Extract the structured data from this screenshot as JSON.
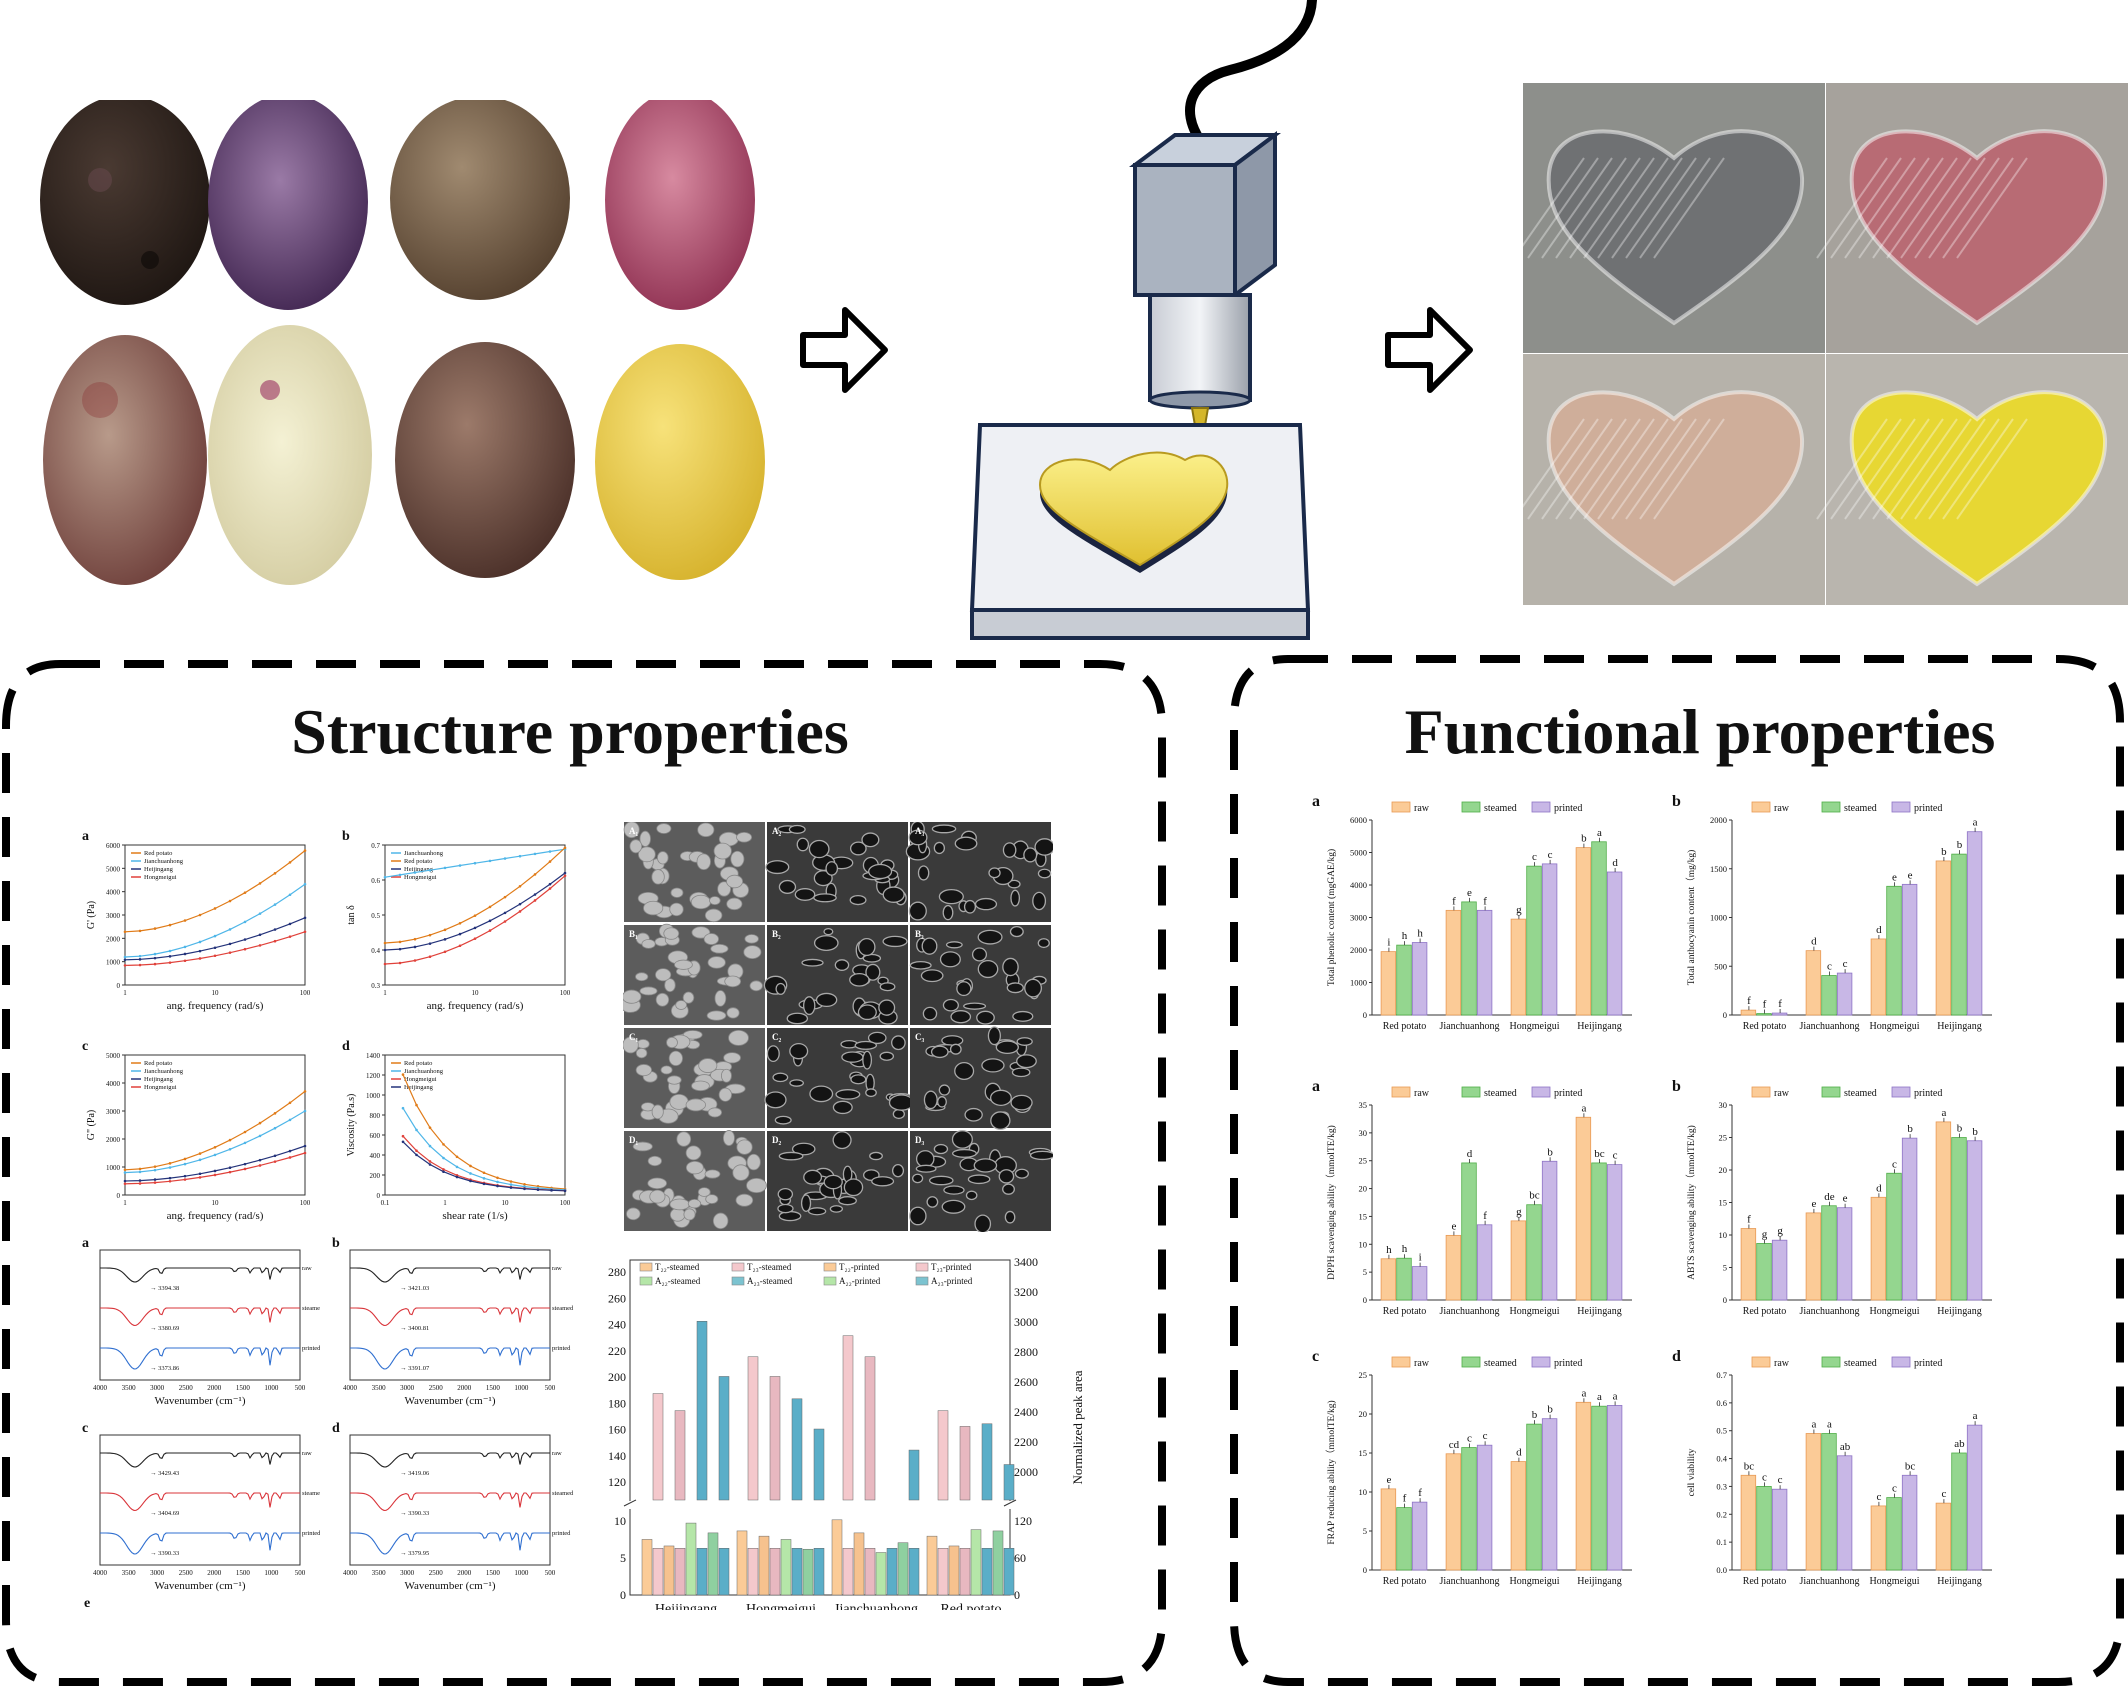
{
  "sections": {
    "structure_title": "Structure properties",
    "functional_title": "Functional properties"
  },
  "top_row": {
    "arrow_icon": "hollow-right-arrow-icon",
    "printer_icon": "3d-printer-nozzle-icon",
    "potato_photos": [
      "dark-purple-potato",
      "purple-flesh-potato",
      "brown-potato",
      "red-flesh-potato",
      "red-skin-potato",
      "white-purple-flesh-potato",
      "red-brown-potato",
      "yellow-flesh-potato"
    ],
    "printed_hearts": [
      {
        "color": "#6f7173"
      },
      {
        "color": "#b86b74"
      },
      {
        "color": "#cfae9a"
      },
      {
        "color": "#e7d733"
      }
    ]
  },
  "colors": {
    "raw": "#fbcb97",
    "steamed": "#94d68f",
    "printed": "#c8b7e6",
    "red_potato": "#e0413a",
    "jianchuanhong": "#4fb6e8",
    "heijingang": "#24337a",
    "hongmeigui": "#e07b18"
  },
  "structure": {
    "rheology": [
      {
        "letter": "a",
        "ylabel": "G' (Pa)",
        "xlabel": "ang. frequency (rad/s)",
        "legend": [
          "Red potato",
          "Jianchuanhong",
          "Heijingang",
          "Hongmeigui"
        ],
        "yticks": [
          "0",
          "1000",
          "2000",
          "3000",
          "4000",
          "5000",
          "6000"
        ],
        "xticks": [
          "1",
          "10",
          "100"
        ]
      },
      {
        "letter": "b",
        "ylabel": "tan δ",
        "xlabel": "ang. frequency (rad/s)",
        "legend": [
          "Jianchuanhong",
          "Red potato",
          "Heijingang",
          "Hongmeigui"
        ],
        "yticks": [
          "0.3",
          "0.4",
          "0.5",
          "0.6",
          "0.7"
        ],
        "xticks": [
          "1",
          "10",
          "100"
        ]
      },
      {
        "letter": "c",
        "ylabel": "G\" (Pa)",
        "xlabel": "ang. frequency (rad/s)",
        "legend": [
          "Red potato",
          "Jianchuanhong",
          "Heijingang",
          "Hongmeigui"
        ],
        "yticks": [
          "0",
          "1000",
          "2000",
          "3000",
          "4000",
          "5000"
        ],
        "xticks": [
          "1",
          "10",
          "100"
        ]
      },
      {
        "letter": "d",
        "ylabel": "Viscosity (Pa.s)",
        "xlabel": "shear rate (1/s)",
        "legend": [
          "Red potato",
          "Jianchuanhong",
          "Hongmeigui",
          "Heijingang"
        ],
        "yticks": [
          "0",
          "200",
          "400",
          "600",
          "800",
          "1000",
          "1200",
          "1400"
        ],
        "xticks": [
          "0.1",
          "1",
          "10",
          "100"
        ]
      }
    ],
    "ftir": [
      {
        "letter": "a",
        "peaks": [
          "3394.38",
          "3380.69",
          "3373.86"
        ]
      },
      {
        "letter": "b",
        "peaks": [
          "3421.03",
          "3400.81",
          "3391.07"
        ]
      },
      {
        "letter": "c",
        "peaks": [
          "3429.43",
          "3404.69",
          "3390.33"
        ]
      },
      {
        "letter": "d",
        "peaks": [
          "3419.06",
          "3390.33",
          "3379.95"
        ]
      }
    ],
    "ftir_labels": [
      "raw",
      "steamed",
      "printed"
    ],
    "ftir_xlabel": "Wavenumber (cm⁻¹)",
    "ftir_xticks": [
      "4000",
      "3500",
      "3000",
      "2500",
      "2000",
      "1500",
      "1000",
      "500"
    ],
    "ftir_extra_letter": "e",
    "sem_labels": [
      "A₁",
      "A₂",
      "A₃",
      "B₁",
      "B₂",
      "B₃",
      "C₁",
      "C₂",
      "C₃",
      "D₁",
      "D₂",
      "D₃"
    ],
    "nmr": {
      "legend": [
        "T₂₂-steamed",
        "T₂₃-steamed",
        "T₂₂-printed",
        "T₂₃-printed",
        "A₂₂-steamed",
        "A₂₃-steamed",
        "A₂₂-printed",
        "A₂₃-printed"
      ],
      "categories": [
        "Heijingang",
        "Hongmeigui",
        "Jianchuanhong",
        "Red potato"
      ],
      "left_ticks": [
        "0",
        "5",
        "10",
        "120",
        "140",
        "160",
        "180",
        "200",
        "220",
        "240",
        "260",
        "280"
      ],
      "right_ticks": [
        "0",
        "60",
        "120",
        "2000",
        "2200",
        "2400",
        "2600",
        "2800",
        "3000",
        "3200",
        "3400"
      ],
      "right_label": "Normalized peak area"
    }
  },
  "chart_data": [
    {
      "type": "bar",
      "title": "a",
      "ylabel": "Total phenolic content (mgGAE/kg)",
      "categories": [
        "Red potato",
        "Jianchuanhong",
        "Hongmeigui",
        "Heijingang"
      ],
      "ylim": [
        0,
        6000
      ],
      "yticks": [
        "0",
        "1000",
        "2000",
        "3000",
        "4000",
        "5000",
        "6000"
      ],
      "series": [
        {
          "name": "raw",
          "values": [
            1950,
            3220,
            2950,
            5150
          ],
          "letters": [
            "i",
            "f",
            "g",
            "b"
          ]
        },
        {
          "name": "steamed",
          "values": [
            2150,
            3480,
            4580,
            5330
          ],
          "letters": [
            "h",
            "e",
            "c",
            "a"
          ]
        },
        {
          "name": "printed",
          "values": [
            2230,
            3220,
            4650,
            4400
          ],
          "letters": [
            "h",
            "f",
            "c",
            "d"
          ]
        }
      ]
    },
    {
      "type": "bar",
      "title": "b",
      "ylabel": "Total anthocyanin content（mg/kg)",
      "categories": [
        "Red potato",
        "Jianchuanhong",
        "Hongmeigui",
        "Heijingang"
      ],
      "ylim": [
        0,
        2000
      ],
      "yticks": [
        "0",
        "500",
        "1000",
        "1500",
        "2000"
      ],
      "series": [
        {
          "name": "raw",
          "values": [
            50,
            660,
            780,
            1580
          ],
          "letters": [
            "f",
            "d",
            "d",
            "b"
          ]
        },
        {
          "name": "steamed",
          "values": [
            15,
            405,
            1320,
            1650
          ],
          "letters": [
            "f",
            "c",
            "e",
            "b"
          ]
        },
        {
          "name": "printed",
          "values": [
            20,
            430,
            1340,
            1880
          ],
          "letters": [
            "f",
            "c",
            "e",
            "a"
          ]
        }
      ]
    },
    {
      "type": "bar",
      "title": "a",
      "ylabel": "DPPH scavenging ability（mmolTE/kg)",
      "categories": [
        "Red potato",
        "Jianchuanhong",
        "Hongmeigui",
        "Heijingang"
      ],
      "ylim": [
        0,
        35
      ],
      "yticks": [
        "0",
        "5",
        "10",
        "15",
        "20",
        "25",
        "30",
        "35"
      ],
      "series": [
        {
          "name": "raw",
          "values": [
            7.4,
            11.6,
            14.2,
            32.8
          ],
          "letters": [
            "h",
            "e",
            "g",
            "a"
          ]
        },
        {
          "name": "steamed",
          "values": [
            7.5,
            24.6,
            17.1,
            24.6
          ],
          "letters": [
            "h",
            "d",
            "bc",
            "bc"
          ]
        },
        {
          "name": "printed",
          "values": [
            6.0,
            13.5,
            24.9,
            24.3
          ],
          "letters": [
            "i",
            "f",
            "b",
            "c"
          ]
        }
      ]
    },
    {
      "type": "bar",
      "title": "b",
      "ylabel": "ABTS scavenging ability（mmolTE/kg)",
      "categories": [
        "Red potato",
        "Jianchuanhong",
        "Hongmeigui",
        "Heijingang"
      ],
      "ylim": [
        0,
        30
      ],
      "yticks": [
        "0",
        "5",
        "10",
        "15",
        "20",
        "25",
        "30"
      ],
      "series": [
        {
          "name": "raw",
          "values": [
            11.0,
            13.4,
            15.8,
            27.4
          ],
          "letters": [
            "f",
            "e",
            "d",
            "a"
          ]
        },
        {
          "name": "steamed",
          "values": [
            8.7,
            14.5,
            19.5,
            25.0
          ],
          "letters": [
            "g",
            "de",
            "c",
            "b"
          ]
        },
        {
          "name": "printed",
          "values": [
            9.2,
            14.2,
            24.9,
            24.5
          ],
          "letters": [
            "g",
            "e",
            "b",
            "b"
          ]
        }
      ]
    },
    {
      "type": "bar",
      "title": "c",
      "ylabel": "FRAP reducing ability（mmolTE/kg)",
      "categories": [
        "Red potato",
        "Jianchuanhong",
        "Hongmeigui",
        "Heijingang"
      ],
      "ylim": [
        0,
        25
      ],
      "yticks": [
        "0",
        "5",
        "10",
        "15",
        "20",
        "25"
      ],
      "series": [
        {
          "name": "raw",
          "values": [
            10.4,
            14.9,
            13.9,
            21.5
          ],
          "letters": [
            "e",
            "cd",
            "d",
            "a"
          ]
        },
        {
          "name": "steamed",
          "values": [
            8.0,
            15.7,
            18.7,
            21.0
          ],
          "letters": [
            "f",
            "c",
            "b",
            "a"
          ]
        },
        {
          "name": "printed",
          "values": [
            8.7,
            16.0,
            19.4,
            21.1
          ],
          "letters": [
            "f",
            "c",
            "b",
            "a"
          ]
        }
      ]
    },
    {
      "type": "bar",
      "title": "d",
      "ylabel": "cell viability",
      "categories": [
        "Red potato",
        "Jianchuanhong",
        "Hongmeigui",
        "Heijingang"
      ],
      "ylim": [
        0,
        0.7
      ],
      "yticks": [
        "0.0",
        "0.1",
        "0.2",
        "0.3",
        "0.4",
        "0.5",
        "0.6",
        "0.7"
      ],
      "series": [
        {
          "name": "raw",
          "values": [
            0.34,
            0.49,
            0.23,
            0.24
          ],
          "letters": [
            "bc",
            "a",
            "c",
            "c"
          ]
        },
        {
          "name": "steamed",
          "values": [
            0.3,
            0.49,
            0.26,
            0.42
          ],
          "letters": [
            "c",
            "a",
            "c",
            "ab"
          ]
        },
        {
          "name": "printed",
          "values": [
            0.29,
            0.41,
            0.34,
            0.52
          ],
          "letters": [
            "c",
            "ab",
            "bc",
            "a"
          ]
        }
      ]
    }
  ]
}
